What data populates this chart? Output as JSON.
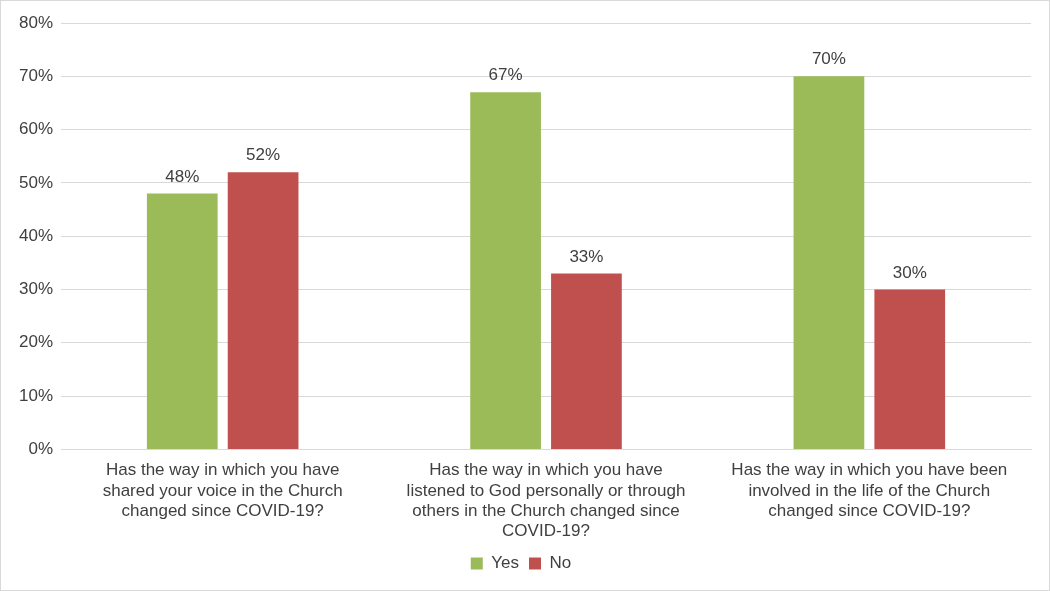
{
  "chart_data": {
    "type": "bar",
    "categories": [
      "Has the way in which you have shared your voice in the Church changed since COVID-19?",
      "Has the way in which you have listened to God personally or through others in the Church changed since COVID-19?",
      "Has the way in which you have been involved in the life of the Church changed since COVID-19?"
    ],
    "series": [
      {
        "name": "Yes",
        "color": "#9bbb59",
        "values": [
          48,
          67,
          70
        ],
        "value_labels": [
          "48%",
          "67%",
          "70%"
        ]
      },
      {
        "name": "No",
        "color": "#c0504d",
        "values": [
          52,
          33,
          30
        ],
        "value_labels": [
          "52%",
          "33%",
          "30%"
        ]
      }
    ],
    "ylim": [
      0,
      80
    ],
    "yticks": [
      {
        "value": 0,
        "label": "0%"
      },
      {
        "value": 10,
        "label": "10%"
      },
      {
        "value": 20,
        "label": "20%"
      },
      {
        "value": 30,
        "label": "30%"
      },
      {
        "value": 40,
        "label": "40%"
      },
      {
        "value": 50,
        "label": "50%"
      },
      {
        "value": 60,
        "label": "60%"
      },
      {
        "value": 70,
        "label": "70%"
      },
      {
        "value": 80,
        "label": "80%"
      }
    ],
    "grid": "y",
    "legend": "bottom"
  }
}
